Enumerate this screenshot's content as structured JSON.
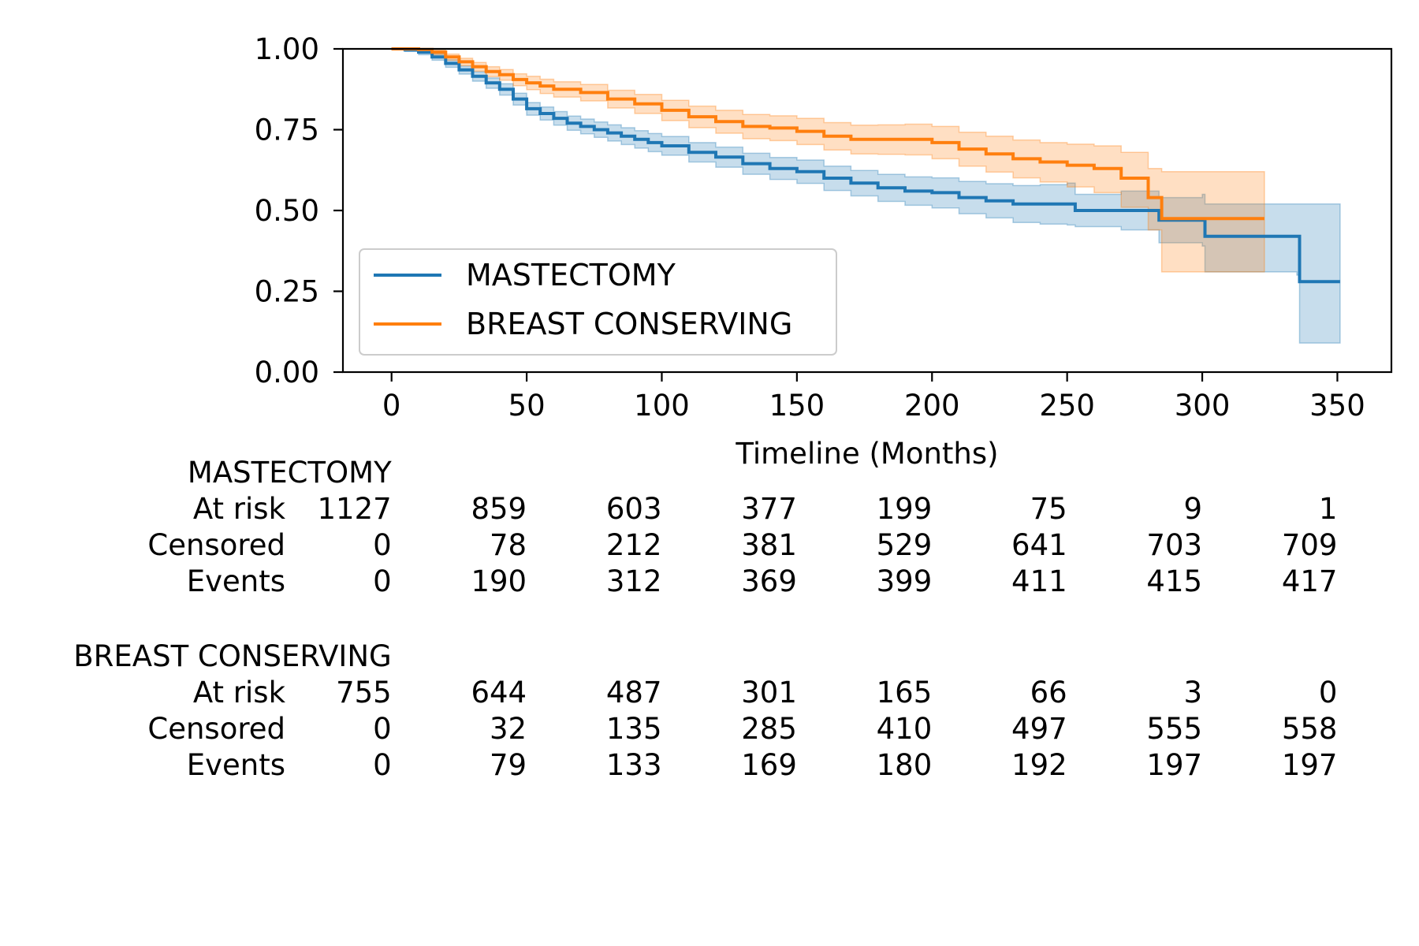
{
  "chart_data": {
    "type": "line",
    "title": "",
    "xlabel": "Timeline (Months)",
    "ylabel": "",
    "xlim": [
      -18,
      370
    ],
    "ylim": [
      0,
      1
    ],
    "xticks": [
      0,
      50,
      100,
      150,
      200,
      250,
      300,
      350
    ],
    "xtick_labels": [
      "0",
      "50",
      "100",
      "150",
      "200",
      "250",
      "300",
      "350"
    ],
    "yticks": [
      0,
      0.25,
      0.5,
      0.75,
      1.0
    ],
    "ytick_labels": [
      "0.00",
      "0.25",
      "0.50",
      "0.75",
      "1.00"
    ],
    "grid": false,
    "legend": {
      "position": "lower-left"
    },
    "series": [
      {
        "name": "MASTECTOMY",
        "color": "#1f77b4",
        "style": "step",
        "x": [
          0,
          5,
          10,
          15,
          20,
          25,
          30,
          35,
          40,
          45,
          50,
          55,
          60,
          65,
          70,
          75,
          80,
          85,
          90,
          95,
          100,
          110,
          120,
          130,
          140,
          150,
          160,
          170,
          180,
          190,
          200,
          210,
          220,
          230,
          240,
          250,
          253,
          270,
          284,
          300,
          301,
          335,
          336,
          351
        ],
        "y": [
          1.0,
          0.997,
          0.99,
          0.975,
          0.955,
          0.935,
          0.915,
          0.895,
          0.875,
          0.845,
          0.815,
          0.8,
          0.785,
          0.77,
          0.76,
          0.75,
          0.74,
          0.73,
          0.72,
          0.71,
          0.7,
          0.68,
          0.665,
          0.645,
          0.63,
          0.62,
          0.6,
          0.585,
          0.57,
          0.56,
          0.555,
          0.54,
          0.53,
          0.52,
          0.52,
          0.52,
          0.5,
          0.5,
          0.47,
          0.47,
          0.42,
          0.42,
          0.28,
          0.28
        ],
        "ci_lower": [
          1.0,
          0.992,
          0.982,
          0.965,
          0.943,
          0.922,
          0.9,
          0.878,
          0.857,
          0.826,
          0.795,
          0.78,
          0.764,
          0.748,
          0.737,
          0.726,
          0.715,
          0.704,
          0.693,
          0.682,
          0.671,
          0.65,
          0.634,
          0.612,
          0.596,
          0.584,
          0.562,
          0.545,
          0.528,
          0.516,
          0.508,
          0.49,
          0.477,
          0.463,
          0.458,
          0.455,
          0.45,
          0.44,
          0.4,
          0.39,
          0.31,
          0.3,
          0.09,
          0.09
        ],
        "ci_upper": [
          1.0,
          1.0,
          0.997,
          0.984,
          0.966,
          0.947,
          0.929,
          0.91,
          0.892,
          0.863,
          0.834,
          0.82,
          0.806,
          0.792,
          0.783,
          0.774,
          0.765,
          0.756,
          0.747,
          0.738,
          0.729,
          0.71,
          0.696,
          0.677,
          0.664,
          0.656,
          0.637,
          0.624,
          0.612,
          0.604,
          0.601,
          0.59,
          0.583,
          0.577,
          0.58,
          0.585,
          0.55,
          0.56,
          0.54,
          0.55,
          0.52,
          0.52,
          0.52,
          0.52
        ]
      },
      {
        "name": "BREAST CONSERVING",
        "color": "#ff7f0e",
        "style": "step",
        "x": [
          0,
          5,
          10,
          15,
          20,
          25,
          30,
          35,
          40,
          45,
          50,
          55,
          60,
          70,
          80,
          90,
          100,
          110,
          120,
          130,
          140,
          150,
          160,
          170,
          180,
          190,
          200,
          210,
          220,
          230,
          240,
          250,
          260,
          270,
          280,
          285,
          300,
          323
        ],
        "y": [
          1.0,
          1.0,
          0.998,
          0.99,
          0.975,
          0.96,
          0.945,
          0.93,
          0.92,
          0.905,
          0.895,
          0.885,
          0.875,
          0.865,
          0.845,
          0.83,
          0.81,
          0.79,
          0.775,
          0.76,
          0.755,
          0.745,
          0.73,
          0.72,
          0.72,
          0.72,
          0.71,
          0.69,
          0.675,
          0.66,
          0.65,
          0.64,
          0.63,
          0.6,
          0.54,
          0.475,
          0.475,
          0.475
        ],
        "ci_lower": [
          1.0,
          1.0,
          0.994,
          0.982,
          0.965,
          0.948,
          0.931,
          0.914,
          0.903,
          0.886,
          0.874,
          0.862,
          0.851,
          0.839,
          0.817,
          0.8,
          0.778,
          0.756,
          0.739,
          0.722,
          0.716,
          0.704,
          0.687,
          0.675,
          0.674,
          0.672,
          0.66,
          0.637,
          0.619,
          0.601,
          0.588,
          0.573,
          0.555,
          0.51,
          0.44,
          0.31,
          0.31,
          0.31
        ],
        "ci_upper": [
          1.0,
          1.0,
          1.0,
          0.996,
          0.984,
          0.971,
          0.958,
          0.945,
          0.936,
          0.923,
          0.915,
          0.906,
          0.898,
          0.89,
          0.872,
          0.859,
          0.841,
          0.823,
          0.81,
          0.797,
          0.793,
          0.785,
          0.772,
          0.764,
          0.765,
          0.767,
          0.76,
          0.742,
          0.73,
          0.718,
          0.71,
          0.705,
          0.7,
          0.68,
          0.63,
          0.62,
          0.62,
          0.62
        ]
      }
    ],
    "at_risk_table": {
      "times": [
        0,
        50,
        100,
        150,
        200,
        250,
        300,
        350
      ],
      "row_labels": [
        "At risk",
        "Censored",
        "Events"
      ],
      "groups": [
        {
          "name": "MASTECTOMY",
          "rows": [
            [
              1127,
              859,
              603,
              377,
              199,
              75,
              9,
              1
            ],
            [
              0,
              78,
              212,
              381,
              529,
              641,
              703,
              709
            ],
            [
              0,
              190,
              312,
              369,
              399,
              411,
              415,
              417
            ]
          ]
        },
        {
          "name": "BREAST CONSERVING",
          "rows": [
            [
              755,
              644,
              487,
              301,
              165,
              66,
              3,
              0
            ],
            [
              0,
              32,
              135,
              285,
              410,
              497,
              555,
              558
            ],
            [
              0,
              79,
              133,
              169,
              180,
              192,
              197,
              197
            ]
          ]
        }
      ]
    }
  }
}
